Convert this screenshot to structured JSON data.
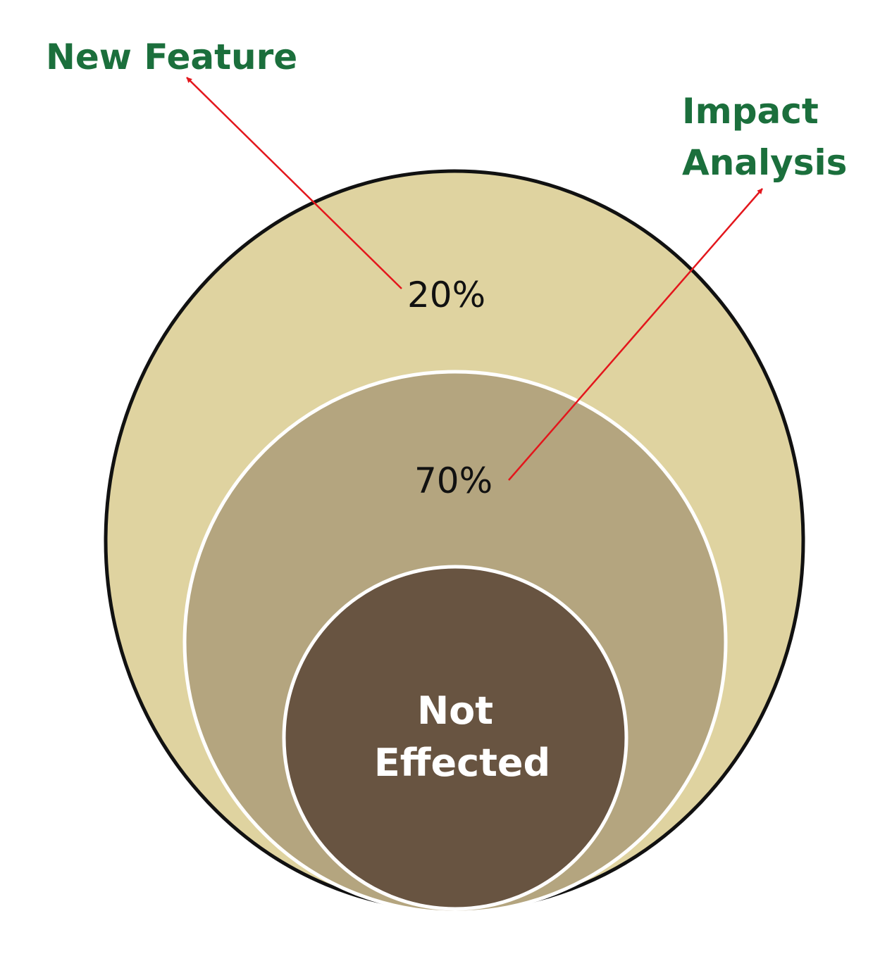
{
  "labels": {
    "new_feature": "New Feature",
    "impact_line1": "Impact",
    "impact_line2": "Analysis",
    "outer_pct": "20%",
    "middle_pct": "70%",
    "inner_line1": "Not",
    "inner_line2": "Effected"
  },
  "colors": {
    "outer_fill": "#dfd3a0",
    "outer_stroke": "#111111",
    "middle_fill": "#b4a57f",
    "inner_fill": "#685441",
    "ring_stroke": "#ffffff",
    "callout_text": "#1b6f3c",
    "arrow": "#e3161c"
  }
}
